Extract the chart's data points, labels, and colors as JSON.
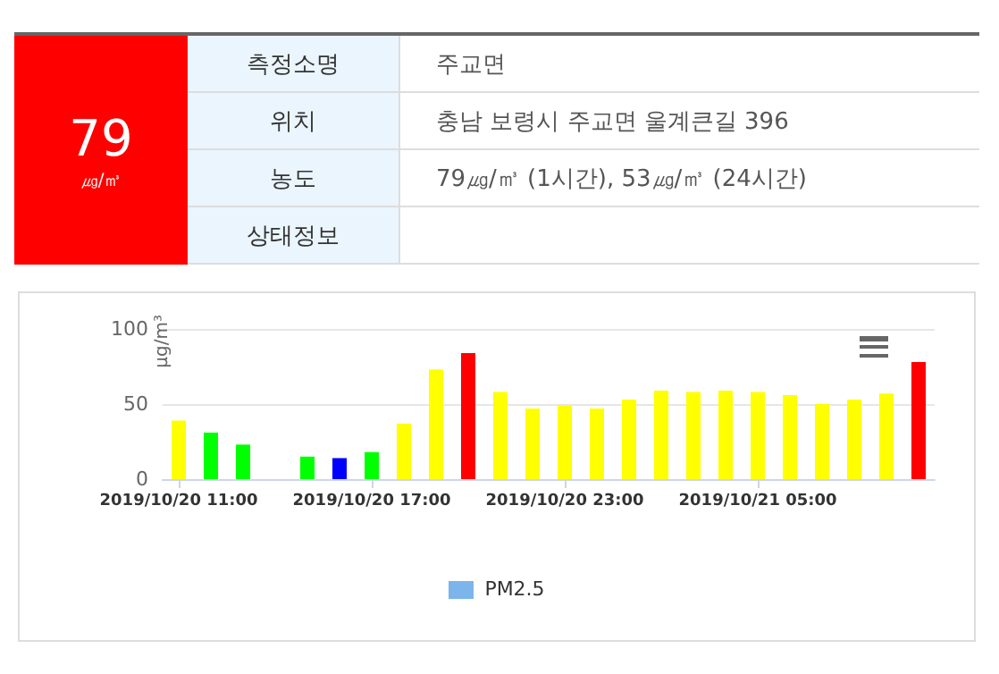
{
  "chart_data": [
    {
      "type": "other",
      "annotations": [
        "79",
        "㎍/㎥",
        "측정소명",
        "주교면",
        "위치",
        "충남 보령시 주교면 울계큰길 396",
        "농도",
        "79㎍/㎥ (1시간), 53㎍/㎥ (24시간)",
        "상태정보"
      ]
    },
    {
      "type": "bar",
      "ylabel": "μg/m³",
      "categories": [
        "2019/10/20 11:00",
        null,
        null,
        null,
        null,
        null,
        "2019/10/20 17:00",
        null,
        null,
        null,
        null,
        null,
        "2019/10/20 23:00",
        null,
        null,
        null,
        null,
        null,
        "2019/10/21 05:00",
        null,
        null,
        null,
        null,
        null
      ],
      "series": [
        {
          "name": "PM2.5",
          "color": "#7cb5ec",
          "values": [
            39,
            31,
            23,
            null,
            15,
            14,
            18,
            37,
            73,
            84,
            58,
            47,
            49,
            47,
            53,
            59,
            58,
            59,
            58,
            56,
            50,
            53,
            57,
            78
          ],
          "colors": [
            "#ffff00",
            "#00ff00",
            "#00ff00",
            null,
            "#00ff00",
            "#0000ff",
            "#00ff00",
            "#ffff00",
            "#ffff00",
            "#ff0000",
            "#ffff00",
            "#ffff00",
            "#ffff00",
            "#ffff00",
            "#ffff00",
            "#ffff00",
            "#ffff00",
            "#ffff00",
            "#ffff00",
            "#ffff00",
            "#ffff00",
            "#ffff00",
            "#ffff00",
            "#ff0000"
          ]
        }
      ],
      "ylim": [
        0,
        100
      ],
      "yticks": [
        0,
        50,
        100
      ],
      "grid": "y",
      "legend": "bottom"
    }
  ]
}
